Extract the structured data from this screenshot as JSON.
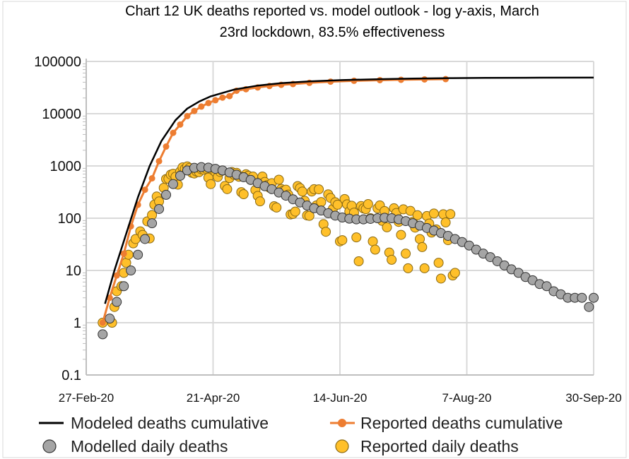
{
  "chart_data": {
    "type": "scatter",
    "title_lines": [
      "Chart 12 UK deaths reported vs. model outlook - log y-axis, March",
      "23rd lockdown, 83.5% effectiveness"
    ],
    "xlabel": "",
    "ylabel": "",
    "y_scale": "log",
    "ylim": [
      0.1,
      100000
    ],
    "xlim": [
      "2020-02-27",
      "2020-09-30"
    ],
    "y_tick_labels": [
      "0.1",
      "1",
      "10",
      "100",
      "1000",
      "10000",
      "100000"
    ],
    "x_tick_labels": [
      "27-Feb-20",
      "21-Apr-20",
      "14-Jun-20",
      "7-Aug-20",
      "30-Sep-20"
    ],
    "x_tick_dates": [
      "2020-02-27",
      "2020-04-21",
      "2020-06-14",
      "2020-08-07",
      "2020-09-30"
    ],
    "grid": true,
    "legend_position": "bottom",
    "colors": {
      "modeled_cumulative": "#000000",
      "reported_cumulative": "#ED7D31",
      "modelled_daily": "#A5A5A5",
      "reported_daily": "#FFC02A",
      "grid": "#D9D9D9"
    },
    "series": [
      {
        "name": "Modeled deaths cumulative",
        "style": "line",
        "points": [
          [
            "2020-03-06",
            2.3
          ],
          [
            "2020-03-10",
            10
          ],
          [
            "2020-03-15",
            50
          ],
          [
            "2020-03-20",
            250
          ],
          [
            "2020-03-25",
            1000
          ],
          [
            "2020-03-30",
            3000
          ],
          [
            "2020-04-05",
            7500
          ],
          [
            "2020-04-10",
            12500
          ],
          [
            "2020-04-15",
            17000
          ],
          [
            "2020-04-20",
            21500
          ],
          [
            "2020-04-30",
            29000
          ],
          [
            "2020-05-10",
            34500
          ],
          [
            "2020-05-20",
            38500
          ],
          [
            "2020-06-01",
            41500
          ],
          [
            "2020-06-15",
            44000
          ],
          [
            "2020-07-01",
            45800
          ],
          [
            "2020-07-15",
            47000
          ],
          [
            "2020-08-01",
            48000
          ],
          [
            "2020-08-15",
            48500
          ],
          [
            "2020-09-01",
            48800
          ],
          [
            "2020-09-30",
            49000
          ]
        ]
      },
      {
        "name": "Reported deaths cumulative",
        "style": "line-marker",
        "points": [
          [
            "2020-03-05",
            1
          ],
          [
            "2020-03-08",
            3
          ],
          [
            "2020-03-11",
            8
          ],
          [
            "2020-03-14",
            21
          ],
          [
            "2020-03-17",
            70
          ],
          [
            "2020-03-20",
            180
          ],
          [
            "2020-03-23",
            350
          ],
          [
            "2020-03-26",
            580
          ],
          [
            "2020-03-29",
            1230
          ],
          [
            "2020-04-01",
            2350
          ],
          [
            "2020-04-04",
            4300
          ],
          [
            "2020-04-07",
            6200
          ],
          [
            "2020-04-10",
            9000
          ],
          [
            "2020-04-13",
            11300
          ],
          [
            "2020-04-16",
            13700
          ],
          [
            "2020-04-19",
            16000
          ],
          [
            "2020-04-22",
            18100
          ],
          [
            "2020-04-25",
            20300
          ],
          [
            "2020-04-28",
            21700
          ],
          [
            "2020-05-01",
            27500
          ],
          [
            "2020-05-05",
            29400
          ],
          [
            "2020-05-10",
            31800
          ],
          [
            "2020-05-15",
            33900
          ],
          [
            "2020-05-20",
            35700
          ],
          [
            "2020-05-25",
            36900
          ],
          [
            "2020-06-01",
            39000
          ],
          [
            "2020-06-10",
            41100
          ],
          [
            "2020-06-20",
            42600
          ],
          [
            "2020-07-01",
            43900
          ],
          [
            "2020-07-10",
            44600
          ],
          [
            "2020-07-20",
            45300
          ],
          [
            "2020-07-29",
            45900
          ]
        ]
      },
      {
        "name": "Modelled daily deaths",
        "style": "marker",
        "points": [
          [
            "2020-03-05",
            0.6
          ],
          [
            "2020-03-08",
            1.2
          ],
          [
            "2020-03-11",
            2.5
          ],
          [
            "2020-03-14",
            5
          ],
          [
            "2020-03-17",
            10
          ],
          [
            "2020-03-20",
            20
          ],
          [
            "2020-03-23",
            40
          ],
          [
            "2020-03-26",
            80
          ],
          [
            "2020-03-29",
            150
          ],
          [
            "2020-04-01",
            280
          ],
          [
            "2020-04-04",
            450
          ],
          [
            "2020-04-07",
            650
          ],
          [
            "2020-04-10",
            820
          ],
          [
            "2020-04-13",
            920
          ],
          [
            "2020-04-16",
            950
          ],
          [
            "2020-04-19",
            930
          ],
          [
            "2020-04-22",
            880
          ],
          [
            "2020-04-25",
            820
          ],
          [
            "2020-04-28",
            750
          ],
          [
            "2020-05-01",
            680
          ],
          [
            "2020-05-04",
            610
          ],
          [
            "2020-05-07",
            540
          ],
          [
            "2020-05-10",
            470
          ],
          [
            "2020-05-13",
            410
          ],
          [
            "2020-05-16",
            360
          ],
          [
            "2020-05-19",
            310
          ],
          [
            "2020-05-22",
            270
          ],
          [
            "2020-05-25",
            230
          ],
          [
            "2020-05-28",
            200
          ],
          [
            "2020-05-31",
            175
          ],
          [
            "2020-06-03",
            155
          ],
          [
            "2020-06-06",
            140
          ],
          [
            "2020-06-09",
            125
          ],
          [
            "2020-06-12",
            112
          ],
          [
            "2020-06-15",
            103
          ],
          [
            "2020-06-18",
            98
          ],
          [
            "2020-06-21",
            95
          ],
          [
            "2020-06-24",
            95
          ],
          [
            "2020-06-27",
            97
          ],
          [
            "2020-06-30",
            100
          ],
          [
            "2020-07-03",
            102
          ],
          [
            "2020-07-06",
            100
          ],
          [
            "2020-07-09",
            95
          ],
          [
            "2020-07-12",
            88
          ],
          [
            "2020-07-15",
            80
          ],
          [
            "2020-07-18",
            72
          ],
          [
            "2020-07-21",
            65
          ],
          [
            "2020-07-24",
            58
          ],
          [
            "2020-07-27",
            52
          ],
          [
            "2020-07-30",
            46
          ],
          [
            "2020-08-02",
            40
          ],
          [
            "2020-08-05",
            35
          ],
          [
            "2020-08-08",
            30
          ],
          [
            "2020-08-11",
            25
          ],
          [
            "2020-08-14",
            21
          ],
          [
            "2020-08-17",
            18
          ],
          [
            "2020-08-20",
            15
          ],
          [
            "2020-08-23",
            12.5
          ],
          [
            "2020-08-26",
            10.5
          ],
          [
            "2020-08-29",
            9
          ],
          [
            "2020-09-01",
            7.5
          ],
          [
            "2020-09-04",
            6.5
          ],
          [
            "2020-09-07",
            5.5
          ],
          [
            "2020-09-10",
            5
          ],
          [
            "2020-09-13",
            4
          ],
          [
            "2020-09-16",
            3.5
          ],
          [
            "2020-09-19",
            3
          ],
          [
            "2020-09-22",
            3
          ],
          [
            "2020-09-25",
            3
          ],
          [
            "2020-09-28",
            2
          ],
          [
            "2020-09-30",
            3
          ]
        ]
      },
      {
        "name": "Reported daily deaths",
        "style": "marker",
        "points": [
          [
            "2020-03-05",
            1
          ],
          [
            "2020-03-09",
            1
          ],
          [
            "2020-03-10",
            2
          ],
          [
            "2020-03-11",
            4
          ],
          [
            "2020-03-13",
            5
          ],
          [
            "2020-03-14",
            9
          ],
          [
            "2020-03-15",
            14
          ],
          [
            "2020-03-16",
            20
          ],
          [
            "2020-03-18",
            33
          ],
          [
            "2020-03-19",
            40
          ],
          [
            "2020-03-21",
            56
          ],
          [
            "2020-03-22",
            48
          ],
          [
            "2020-03-24",
            87
          ],
          [
            "2020-03-25",
            41
          ],
          [
            "2020-03-26",
            115
          ],
          [
            "2020-03-27",
            181
          ],
          [
            "2020-03-28",
            260
          ],
          [
            "2020-03-29",
            209
          ],
          [
            "2020-03-31",
            381
          ],
          [
            "2020-04-01",
            563
          ],
          [
            "2020-04-02",
            569
          ],
          [
            "2020-04-03",
            684
          ],
          [
            "2020-04-04",
            708
          ],
          [
            "2020-04-05",
            621
          ],
          [
            "2020-04-06",
            439
          ],
          [
            "2020-04-07",
            786
          ],
          [
            "2020-04-08",
            938
          ],
          [
            "2020-04-09",
            881
          ],
          [
            "2020-04-10",
            980
          ],
          [
            "2020-04-11",
            917
          ],
          [
            "2020-04-12",
            737
          ],
          [
            "2020-04-13",
            717
          ],
          [
            "2020-04-14",
            778
          ],
          [
            "2020-04-15",
            761
          ],
          [
            "2020-04-16",
            861
          ],
          [
            "2020-04-17",
            847
          ],
          [
            "2020-04-18",
            888
          ],
          [
            "2020-04-19",
            596
          ],
          [
            "2020-04-20",
            449
          ],
          [
            "2020-04-21",
            828
          ],
          [
            "2020-04-22",
            763
          ],
          [
            "2020-04-23",
            616
          ],
          [
            "2020-04-24",
            768
          ],
          [
            "2020-04-25",
            813
          ],
          [
            "2020-04-26",
            413
          ],
          [
            "2020-04-27",
            360
          ],
          [
            "2020-04-28",
            586
          ],
          [
            "2020-04-29",
            765
          ],
          [
            "2020-04-30",
            674
          ],
          [
            "2020-05-01",
            739
          ],
          [
            "2020-05-02",
            621
          ],
          [
            "2020-05-03",
            315
          ],
          [
            "2020-05-04",
            288
          ],
          [
            "2020-05-05",
            693
          ],
          [
            "2020-05-06",
            649
          ],
          [
            "2020-05-07",
            539
          ],
          [
            "2020-05-08",
            626
          ],
          [
            "2020-05-09",
            346
          ],
          [
            "2020-05-10",
            268
          ],
          [
            "2020-05-11",
            210
          ],
          [
            "2020-05-12",
            627
          ],
          [
            "2020-05-13",
            494
          ],
          [
            "2020-05-14",
            428
          ],
          [
            "2020-05-15",
            384
          ],
          [
            "2020-05-16",
            468
          ],
          [
            "2020-05-17",
            170
          ],
          [
            "2020-05-18",
            160
          ],
          [
            "2020-05-19",
            545
          ],
          [
            "2020-05-20",
            363
          ],
          [
            "2020-05-21",
            338
          ],
          [
            "2020-05-22",
            351
          ],
          [
            "2020-05-23",
            282
          ],
          [
            "2020-05-24",
            118
          ],
          [
            "2020-05-25",
            121
          ],
          [
            "2020-05-26",
            134
          ],
          [
            "2020-05-27",
            412
          ],
          [
            "2020-05-28",
            377
          ],
          [
            "2020-05-29",
            324
          ],
          [
            "2020-05-30",
            215
          ],
          [
            "2020-05-31",
            113
          ],
          [
            "2020-06-01",
            111
          ],
          [
            "2020-06-02",
            324
          ],
          [
            "2020-06-03",
            359
          ],
          [
            "2020-06-04",
            176
          ],
          [
            "2020-06-05",
            357
          ],
          [
            "2020-06-06",
            204
          ],
          [
            "2020-06-07",
            77
          ],
          [
            "2020-06-08",
            55
          ],
          [
            "2020-06-09",
            286
          ],
          [
            "2020-06-10",
            245
          ],
          [
            "2020-06-11",
            151
          ],
          [
            "2020-06-12",
            202
          ],
          [
            "2020-06-13",
            181
          ],
          [
            "2020-06-14",
            36
          ],
          [
            "2020-06-15",
            38
          ],
          [
            "2020-06-16",
            233
          ],
          [
            "2020-06-17",
            184
          ],
          [
            "2020-06-18",
            135
          ],
          [
            "2020-06-19",
            173
          ],
          [
            "2020-06-20",
            128
          ],
          [
            "2020-06-21",
            43
          ],
          [
            "2020-06-22",
            15
          ],
          [
            "2020-06-23",
            171
          ],
          [
            "2020-06-24",
            154
          ],
          [
            "2020-06-25",
            149
          ],
          [
            "2020-06-26",
            186
          ],
          [
            "2020-06-27",
            100
          ],
          [
            "2020-06-28",
            36
          ],
          [
            "2020-06-29",
            25
          ],
          [
            "2020-06-30",
            155
          ],
          [
            "2020-07-01",
            176
          ],
          [
            "2020-07-02",
            89
          ],
          [
            "2020-07-03",
            137
          ],
          [
            "2020-07-04",
            67
          ],
          [
            "2020-07-05",
            22
          ],
          [
            "2020-07-06",
            16
          ],
          [
            "2020-07-07",
            155
          ],
          [
            "2020-07-08",
            126
          ],
          [
            "2020-07-09",
            85
          ],
          [
            "2020-07-10",
            48
          ],
          [
            "2020-07-11",
            148
          ],
          [
            "2020-07-12",
            21
          ],
          [
            "2020-07-13",
            11
          ],
          [
            "2020-07-14",
            138
          ],
          [
            "2020-07-15",
            85
          ],
          [
            "2020-07-16",
            66
          ],
          [
            "2020-07-17",
            114
          ],
          [
            "2020-07-18",
            40
          ],
          [
            "2020-07-19",
            28
          ],
          [
            "2020-07-20",
            11
          ],
          [
            "2020-07-21",
            110
          ],
          [
            "2020-07-22",
            79
          ],
          [
            "2020-07-23",
            53
          ],
          [
            "2020-07-24",
            123
          ],
          [
            "2020-07-25",
            61
          ],
          [
            "2020-07-26",
            14
          ],
          [
            "2020-07-27",
            7
          ],
          [
            "2020-07-28",
            119
          ],
          [
            "2020-07-29",
            83
          ],
          [
            "2020-07-30",
            38
          ],
          [
            "2020-07-31",
            120
          ],
          [
            "2020-08-01",
            8
          ],
          [
            "2020-08-02",
            9
          ]
        ]
      }
    ]
  }
}
